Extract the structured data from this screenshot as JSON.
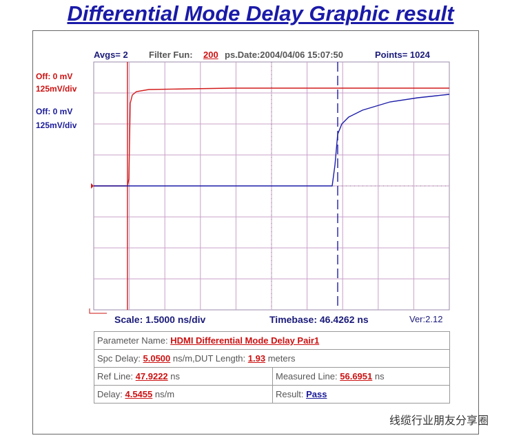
{
  "title": "Differential Mode Delay Graphic result",
  "header": {
    "avgs": "Avgs= 2",
    "filter_label": "Filter Fun:",
    "filter_value": "200",
    "date": "ps.Date:2004/04/06 15:07:50",
    "points": "Points= 1024"
  },
  "channels": [
    {
      "offset": "Off: 0 mV",
      "scale": "125mV/div"
    },
    {
      "offset": "Off: 0 mV",
      "scale": "125mV/div"
    }
  ],
  "footer": {
    "scale": "Scale: 1.5000 ns/div",
    "timebase": "Timebase: 46.4262 ns",
    "version": "Ver:2.12"
  },
  "table": {
    "parameter_label": "Parameter Name:",
    "parameter_value": "HDMI Differential Mode Delay Pair1",
    "spc_label": "Spc Delay:",
    "spc_value": "5.0500",
    "spc_unit": "ns/m,DUT Length:",
    "length_value": "1.93",
    "length_unit": "meters",
    "ref_label": "Ref Line:",
    "ref_value": "47.9222",
    "ref_unit": "ns",
    "meas_label": "Measured Line:",
    "meas_value": "56.6951",
    "meas_unit": "ns",
    "delay_label": "Delay:",
    "delay_value": "4.5455",
    "delay_unit": "ns/m",
    "result_label": "Result:",
    "result_value": "Pass"
  },
  "watermark": "线缆行业朋友分享圈"
}
